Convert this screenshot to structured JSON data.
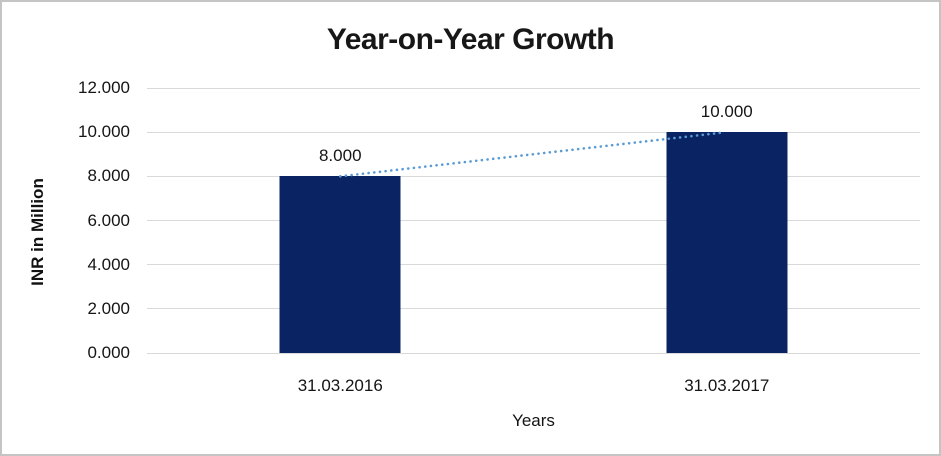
{
  "window": {
    "background": "#ffffff",
    "border_color": "#c4c4c4"
  },
  "chart_data": {
    "type": "bar",
    "title": "Year-on-Year Growth",
    "categories": [
      "31.03.2016",
      "31.03.2017"
    ],
    "values": [
      8,
      10
    ],
    "data_labels": [
      "8.000",
      "10.000"
    ],
    "xlabel": "Years",
    "ylabel": "INR in Million",
    "ylim": [
      0,
      12
    ],
    "ytick_step": 2,
    "yticks": [
      "12.000",
      "10.000",
      "8.000",
      "6.000",
      "4.000",
      "2.000",
      "0.000"
    ],
    "grid": true,
    "legend": "none",
    "bar_color": "#0a2463",
    "gridline_color": "#d9d9d9",
    "text_color": "#151515",
    "trendline": {
      "type": "linear",
      "style": "dotted",
      "color": "#5b9bd5",
      "from_value": 8,
      "to_value": 10
    }
  }
}
